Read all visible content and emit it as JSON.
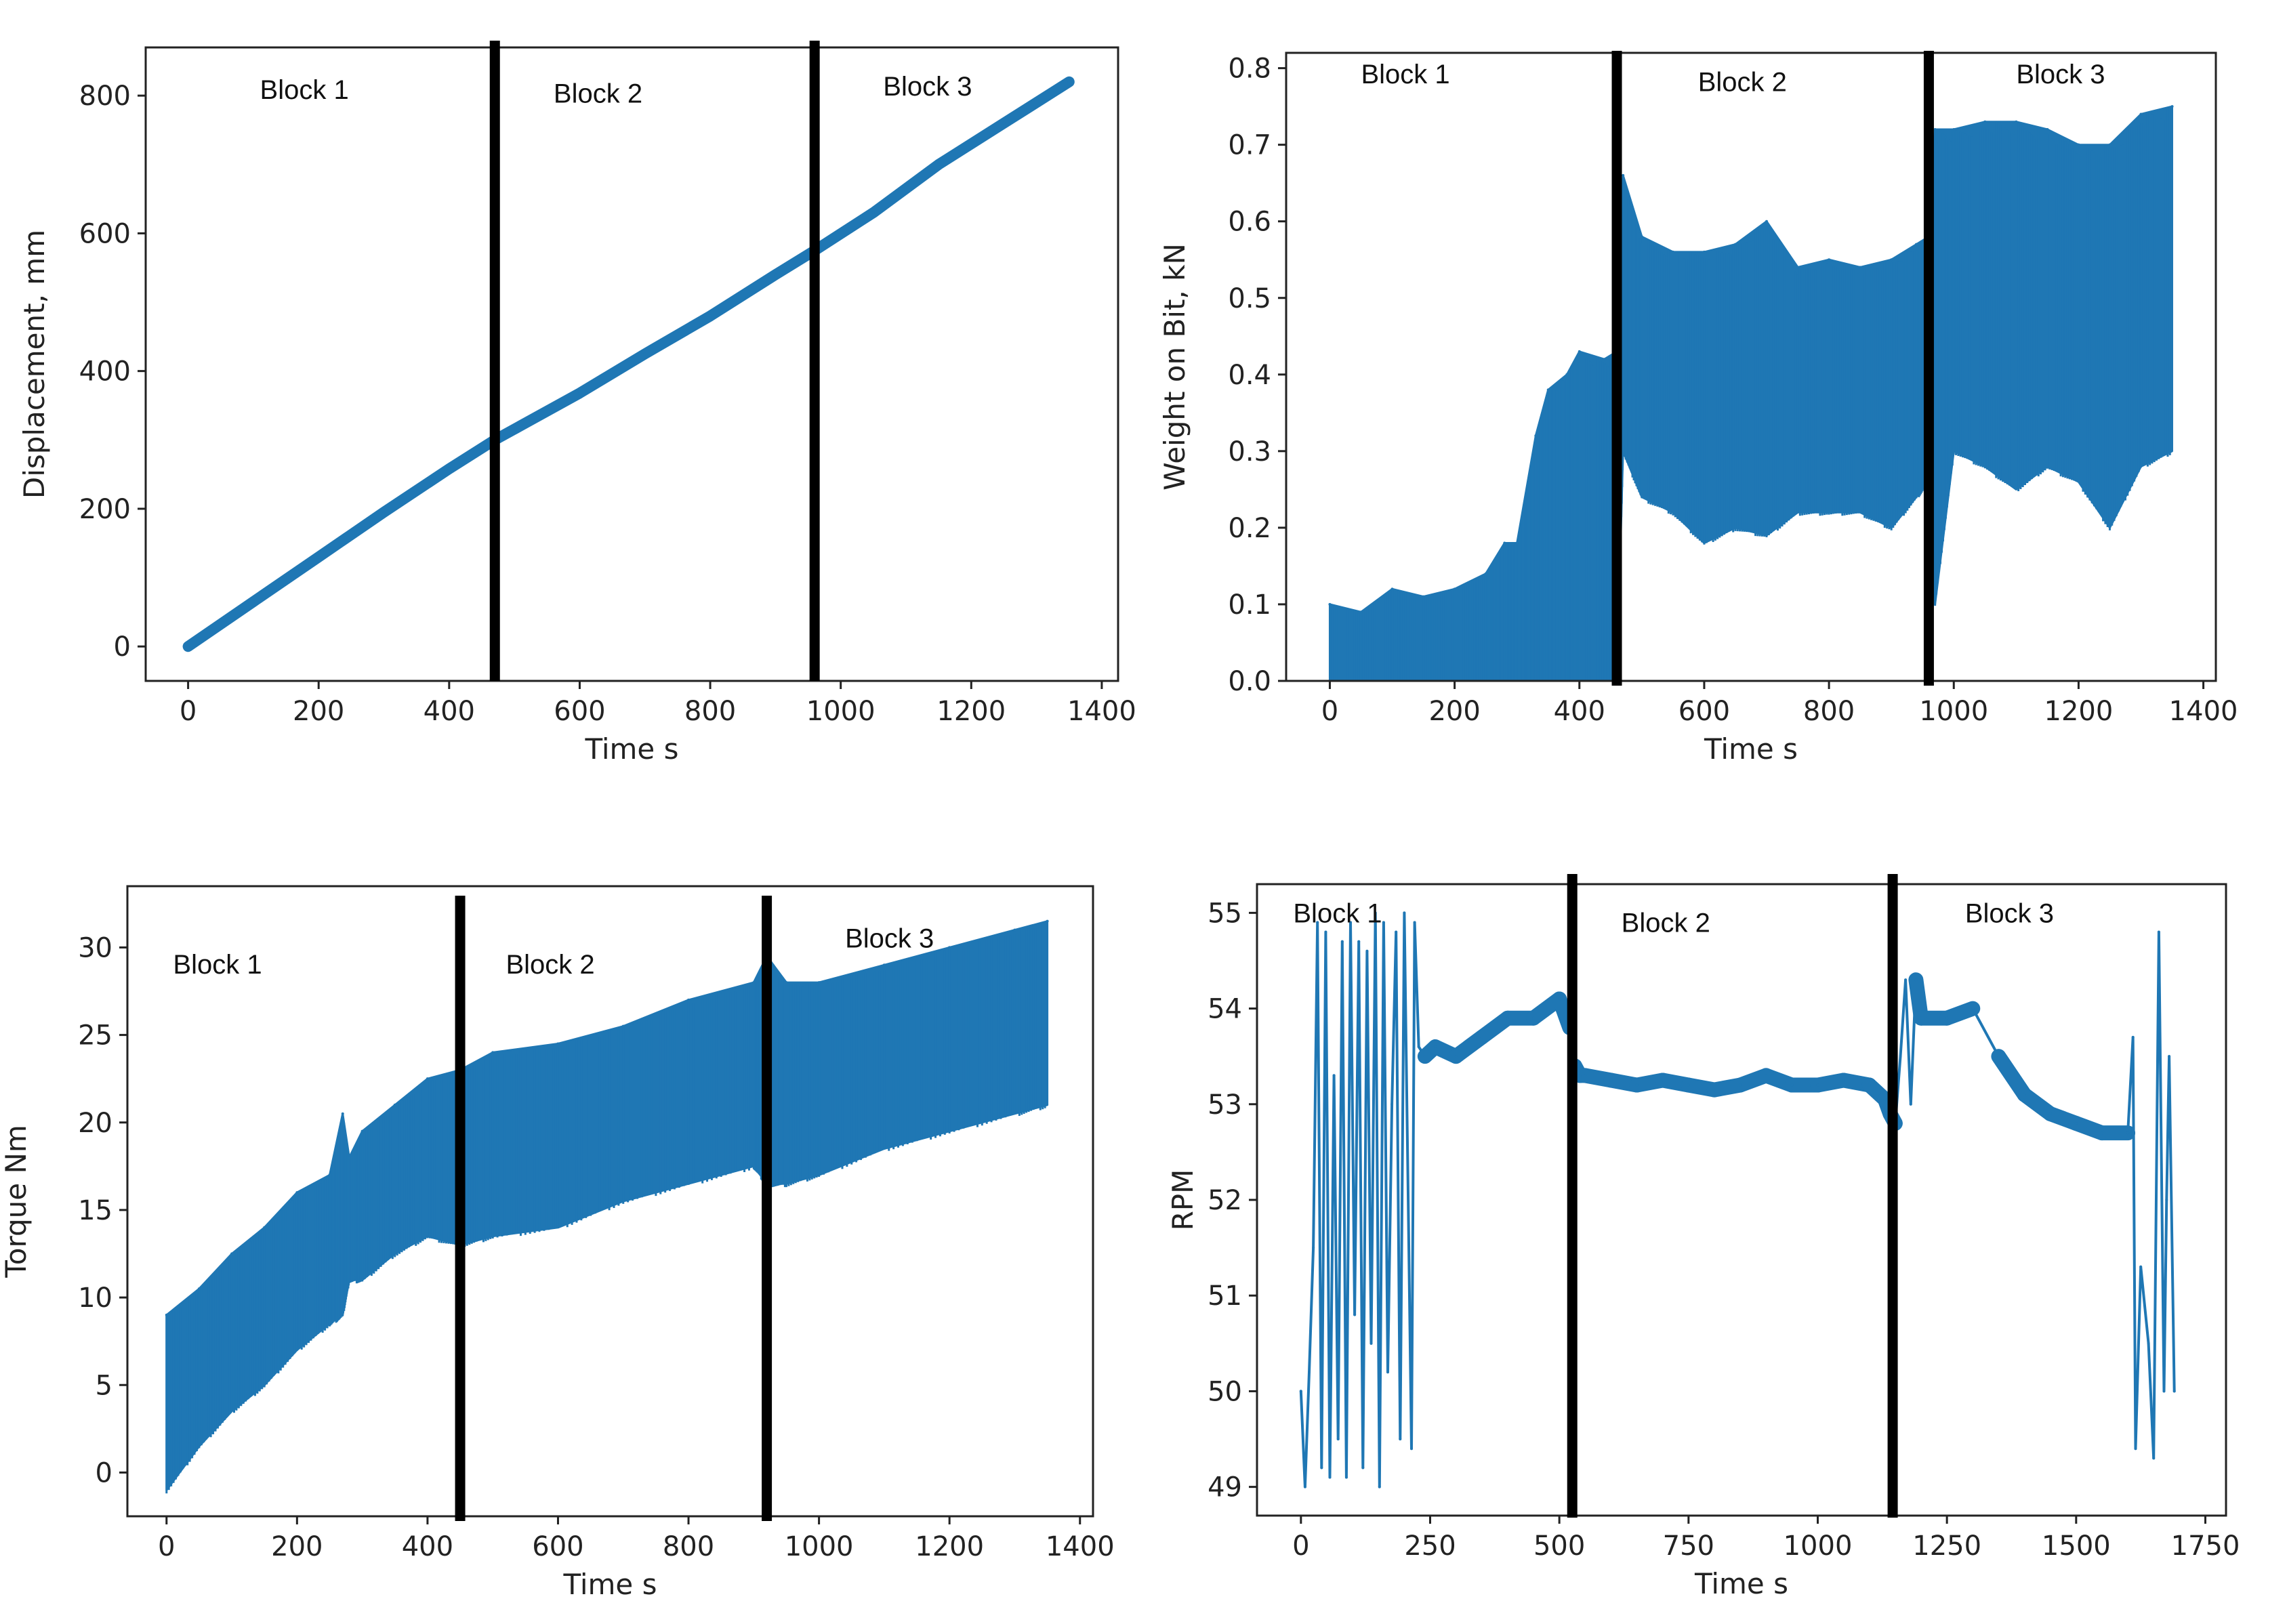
{
  "figure": {
    "series_color": "#1f77b4",
    "divider_color": "#000000"
  },
  "chart_data": [
    {
      "id": "displacement",
      "type": "line",
      "title": "",
      "xlabel": "Time s",
      "ylabel": "Displacement, mm",
      "xlim": [
        -65,
        1425
      ],
      "ylim": [
        -50,
        870
      ],
      "xticks": [
        0,
        200,
        400,
        600,
        800,
        1000,
        1200,
        1400
      ],
      "yticks": [
        0,
        200,
        400,
        600,
        800
      ],
      "ytick_labels": [
        "0",
        "200",
        "400",
        "600",
        "800"
      ],
      "block_dividers": [
        470,
        960
      ],
      "block_labels": [
        {
          "text": "Block 1",
          "x": 110,
          "y": 795
        },
        {
          "text": "Block 2",
          "x": 560,
          "y": 790
        },
        {
          "text": "Block 3",
          "x": 1065,
          "y": 800
        }
      ],
      "series": [
        {
          "name": "Displacement",
          "style": "thick-line",
          "band": 4,
          "x": [
            0,
            100,
            200,
            300,
            400,
            470,
            600,
            700,
            800,
            900,
            960,
            1050,
            1150,
            1250,
            1350
          ],
          "y": [
            0,
            65,
            130,
            195,
            258,
            300,
            368,
            425,
            480,
            540,
            575,
            630,
            700,
            760,
            820
          ]
        }
      ]
    },
    {
      "id": "weight_on_bit",
      "type": "line",
      "title": "",
      "xlabel": "Time s",
      "ylabel": "Weight on Bit, kN",
      "xlim": [
        -70,
        1420
      ],
      "ylim": [
        0,
        0.82
      ],
      "xticks": [
        0,
        200,
        400,
        600,
        800,
        1000,
        1200,
        1400
      ],
      "yticks": [
        0,
        0.1,
        0.2,
        0.3,
        0.4,
        0.5,
        0.6,
        0.7,
        0.8
      ],
      "ytick_labels": [
        "0.0",
        "0.1",
        "0.2",
        "0.3",
        "0.4",
        "0.5",
        "0.6",
        "0.7",
        "0.8"
      ],
      "block_dividers": [
        460,
        960
      ],
      "block_labels": [
        {
          "text": "Block 1",
          "x": 50,
          "y": 0.78
        },
        {
          "text": "Block 2",
          "x": 590,
          "y": 0.77
        },
        {
          "text": "Block 3",
          "x": 1100,
          "y": 0.78
        }
      ],
      "series": [
        {
          "name": "Weight on Bit",
          "style": "envelope",
          "x": [
            0,
            50,
            100,
            150,
            200,
            250,
            280,
            300,
            330,
            350,
            380,
            400,
            440,
            460,
            470,
            500,
            550,
            600,
            650,
            700,
            750,
            800,
            850,
            900,
            940,
            960,
            970,
            1000,
            1050,
            1100,
            1150,
            1200,
            1250,
            1300,
            1350
          ],
          "upper": [
            0.1,
            0.09,
            0.12,
            0.11,
            0.12,
            0.14,
            0.18,
            0.18,
            0.32,
            0.38,
            0.4,
            0.43,
            0.42,
            0.43,
            0.66,
            0.58,
            0.56,
            0.56,
            0.57,
            0.6,
            0.54,
            0.55,
            0.54,
            0.55,
            0.57,
            0.58,
            0.72,
            0.72,
            0.73,
            0.73,
            0.72,
            0.7,
            0.7,
            0.74,
            0.75
          ],
          "lower": [
            0.0,
            0.0,
            0.0,
            0.0,
            0.0,
            0.0,
            0.0,
            0.0,
            0.0,
            0.0,
            0.0,
            0.0,
            0.0,
            0.0,
            0.3,
            0.24,
            0.22,
            0.18,
            0.2,
            0.19,
            0.22,
            0.22,
            0.22,
            0.2,
            0.24,
            0.26,
            0.1,
            0.3,
            0.28,
            0.25,
            0.28,
            0.26,
            0.2,
            0.28,
            0.3
          ]
        }
      ]
    },
    {
      "id": "torque",
      "type": "line",
      "title": "",
      "xlabel": "Time s",
      "ylabel": "Torque Nm",
      "xlim": [
        -60,
        1420
      ],
      "ylim": [
        -2.5,
        33.5
      ],
      "xticks": [
        0,
        200,
        400,
        600,
        800,
        1000,
        1200,
        1400
      ],
      "yticks": [
        0,
        5,
        10,
        15,
        20,
        25,
        30
      ],
      "ytick_labels": [
        "0",
        "5",
        "10",
        "15",
        "20",
        "25",
        "30"
      ],
      "block_dividers": [
        450,
        920
      ],
      "block_labels": [
        {
          "text": "Block 1",
          "x": 10,
          "y": 28.5
        },
        {
          "text": "Block 2",
          "x": 520,
          "y": 28.5
        },
        {
          "text": "Block 3",
          "x": 1040,
          "y": 30.0
        }
      ],
      "series": [
        {
          "name": "Torque",
          "style": "envelope",
          "x": [
            0,
            50,
            100,
            150,
            200,
            250,
            270,
            280,
            300,
            350,
            400,
            450,
            500,
            600,
            700,
            800,
            900,
            920,
            950,
            1000,
            1100,
            1200,
            1300,
            1350
          ],
          "upper": [
            9.0,
            10.5,
            12.5,
            14.0,
            16.0,
            17.0,
            20.5,
            18.0,
            19.5,
            21.0,
            22.5,
            23.0,
            24.0,
            24.5,
            25.5,
            27.0,
            28.0,
            29.5,
            28.0,
            28.0,
            29.0,
            30.0,
            31.0,
            31.5
          ],
          "lower": [
            -1.0,
            1.5,
            3.5,
            5.0,
            7.0,
            8.5,
            9.0,
            11.0,
            11.0,
            12.5,
            13.5,
            13.0,
            13.5,
            14.0,
            15.5,
            16.5,
            17.5,
            16.5,
            16.5,
            17.0,
            18.5,
            19.5,
            20.5,
            21.0
          ]
        }
      ]
    },
    {
      "id": "rpm",
      "type": "line",
      "title": "",
      "xlabel": "Time s",
      "ylabel": "RPM",
      "xlim": [
        -85,
        1790
      ],
      "ylim": [
        48.7,
        55.3
      ],
      "xticks": [
        0,
        250,
        500,
        750,
        1000,
        1250,
        1500,
        1750
      ],
      "yticks": [
        49,
        50,
        51,
        52,
        53,
        54,
        55
      ],
      "ytick_labels": [
        "49",
        "50",
        "51",
        "52",
        "53",
        "54",
        "55"
      ],
      "block_dividers": [
        525,
        1145
      ],
      "block_labels": [
        {
          "text": "Block 1",
          "x": -15,
          "y": 54.9
        },
        {
          "text": "Block 2",
          "x": 620,
          "y": 54.8
        },
        {
          "text": "Block 3",
          "x": 1285,
          "y": 54.9
        }
      ],
      "series": [
        {
          "name": "RPM",
          "style": "thin-line",
          "x": [
            0,
            8,
            16,
            24,
            32,
            40,
            48,
            56,
            64,
            72,
            80,
            88,
            96,
            104,
            112,
            120,
            128,
            136,
            144,
            152,
            160,
            168,
            176,
            184,
            192,
            200,
            208,
            214,
            220,
            228,
            240,
            260,
            300,
            350,
            400,
            450,
            500,
            520,
            525,
            530,
            540,
            550,
            600,
            650,
            700,
            750,
            800,
            850,
            900,
            950,
            1000,
            1050,
            1100,
            1130,
            1140,
            1150,
            1160,
            1170,
            1180,
            1190,
            1200,
            1250,
            1300,
            1350,
            1400,
            1450,
            1500,
            1550,
            1600,
            1610,
            1615,
            1625,
            1640,
            1650,
            1660,
            1670,
            1675,
            1680,
            1690
          ],
          "y": [
            50.0,
            49.0,
            50.2,
            51.5,
            54.9,
            49.2,
            54.8,
            49.1,
            53.3,
            49.5,
            54.7,
            49.1,
            54.9,
            50.8,
            54.7,
            49.2,
            54.6,
            50.5,
            55.0,
            49.0,
            54.9,
            50.2,
            53.0,
            54.8,
            49.5,
            55.0,
            51.8,
            49.4,
            54.9,
            53.6,
            53.5,
            53.6,
            53.5,
            53.7,
            53.9,
            53.9,
            54.1,
            53.8,
            52.6,
            53.4,
            53.3,
            53.3,
            53.25,
            53.2,
            53.25,
            53.2,
            53.15,
            53.2,
            53.3,
            53.2,
            53.2,
            53.25,
            53.2,
            53.05,
            52.9,
            52.8,
            53.5,
            54.3,
            53.0,
            54.3,
            53.9,
            53.9,
            54.0,
            53.5,
            53.1,
            52.9,
            52.8,
            52.7,
            52.7,
            53.7,
            49.4,
            51.3,
            50.5,
            49.3,
            54.8,
            50.0,
            52.0,
            53.5,
            50.0
          ]
        }
      ]
    }
  ]
}
